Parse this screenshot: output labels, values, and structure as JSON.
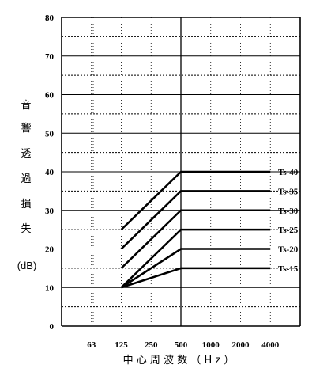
{
  "chart_data": {
    "type": "line",
    "title": "",
    "xlabel": "中 心 周 波 数 （ H z ）",
    "ylabel": [
      "音",
      "響",
      "透",
      "過",
      "損",
      "失",
      "(dB)"
    ],
    "ylim": [
      0,
      80
    ],
    "y_ticks": [
      0,
      10,
      20,
      30,
      40,
      50,
      60,
      70,
      80
    ],
    "x_categories": [
      "63",
      "125",
      "250",
      "500",
      "1000",
      "2000",
      "4000"
    ],
    "grid": true,
    "series": [
      {
        "name": "Ts-40",
        "points": [
          [
            "125",
            25
          ],
          [
            "500",
            40
          ],
          [
            "4000",
            40
          ]
        ]
      },
      {
        "name": "Ts-35",
        "points": [
          [
            "125",
            20
          ],
          [
            "500",
            35
          ],
          [
            "4000",
            35
          ]
        ]
      },
      {
        "name": "Ts-30",
        "points": [
          [
            "125",
            15
          ],
          [
            "500",
            30
          ],
          [
            "4000",
            30
          ]
        ]
      },
      {
        "name": "Ts-25",
        "points": [
          [
            "125",
            10
          ],
          [
            "500",
            25
          ],
          [
            "4000",
            25
          ]
        ]
      },
      {
        "name": "Ts-20",
        "points": [
          [
            "125",
            10
          ],
          [
            "500",
            20
          ],
          [
            "4000",
            20
          ]
        ]
      },
      {
        "name": "Ts-15",
        "points": [
          [
            "125",
            10
          ],
          [
            "500",
            15
          ],
          [
            "4000",
            15
          ]
        ]
      }
    ]
  }
}
